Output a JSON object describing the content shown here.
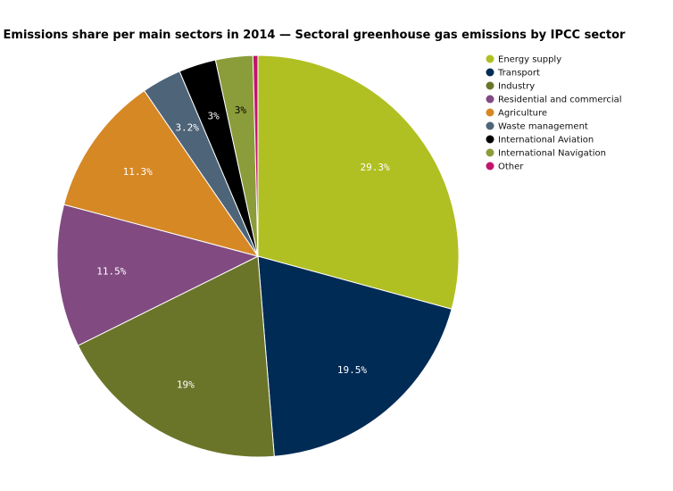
{
  "chart_data": {
    "type": "pie",
    "title": "Emissions share per main sectors in 2014 — Sectoral greenhouse gas emissions by IPCC sector",
    "legend_position": "right",
    "slices": [
      {
        "name": "Energy supply",
        "value": 29.3,
        "label": "29.3%",
        "color": "#b0bf22",
        "label_color": "#ffffff"
      },
      {
        "name": "Transport",
        "value": 19.5,
        "label": "19.5%",
        "color": "#002b55",
        "label_color": "#ffffff"
      },
      {
        "name": "Industry",
        "value": 19.0,
        "label": "19%",
        "color": "#6b7529",
        "label_color": "#ffffff"
      },
      {
        "name": "Residential and commercial",
        "value": 11.5,
        "label": "11.5%",
        "color": "#814a81",
        "label_color": "#ffffff"
      },
      {
        "name": "Agriculture",
        "value": 11.3,
        "label": "11.3%",
        "color": "#d68825",
        "label_color": "#ffffff"
      },
      {
        "name": "Waste management",
        "value": 3.2,
        "label": "3.2%",
        "color": "#4e6478",
        "label_color": "#ffffff"
      },
      {
        "name": "International Aviation",
        "value": 3.0,
        "label": "3%",
        "color": "#000000",
        "label_color": "#ffffff"
      },
      {
        "name": "International Navigation",
        "value": 3.0,
        "label": "3%",
        "color": "#8b9c3a",
        "label_color": "#000000"
      },
      {
        "name": "Other",
        "value": 0.4,
        "label": "",
        "color": "#c0166e",
        "label_color": "#ffffff"
      }
    ]
  }
}
